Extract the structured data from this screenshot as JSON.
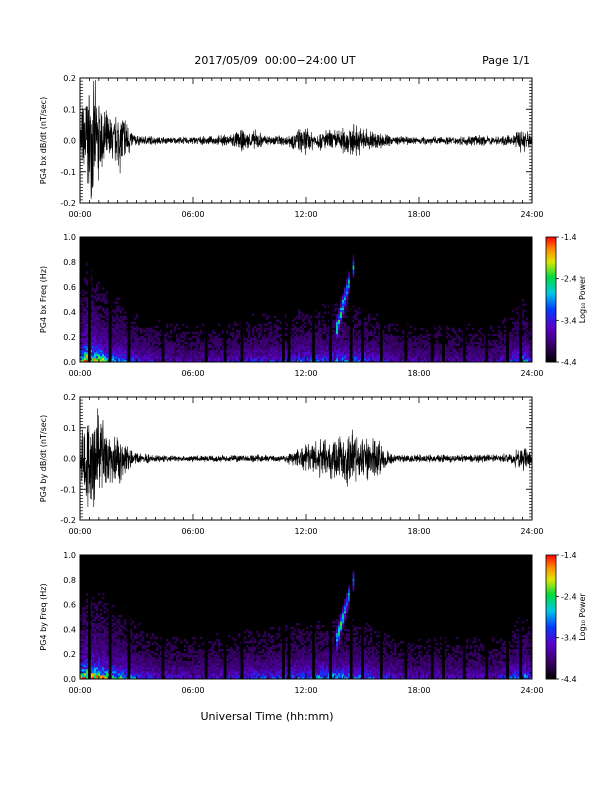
{
  "header": {
    "date_range": "2017/05/09  00:00−24:00 UT",
    "page": "Page 1/1"
  },
  "xlabel": "Universal Time (hh:mm)",
  "chart_data": [
    {
      "type": "line",
      "ylabel": "PG4 bx dB/dt (nT/sec)",
      "xlim": [
        0,
        24
      ],
      "ylim": [
        -0.2,
        0.2
      ],
      "x_ticks": [
        "00:00",
        "06:00",
        "12:00",
        "18:00",
        "24:00"
      ],
      "y_ticks": [
        "-0.2",
        "-0.1",
        "0.0",
        "0.1",
        "0.2"
      ],
      "envelope": {
        "hours": [
          0,
          0.3,
          0.6,
          0.9,
          1.2,
          1.5,
          1.8,
          2.1,
          2.4,
          2.7,
          3.0,
          3.3,
          3.6,
          4.0,
          5.0,
          6.0,
          7.0,
          8.0,
          8.5,
          9.0,
          9.4,
          9.8,
          10.5,
          11.0,
          11.5,
          12.0,
          12.5,
          13.0,
          13.5,
          14.0,
          14.5,
          15.0,
          15.5,
          16.0,
          16.5,
          17.0,
          18.0,
          19.0,
          20.0,
          21.0,
          22.0,
          23.0,
          23.4,
          23.7,
          24.0
        ],
        "amplitude": [
          0.08,
          0.2,
          0.2,
          0.2,
          0.12,
          0.1,
          0.08,
          0.12,
          0.1,
          0.04,
          0.02,
          0.015,
          0.02,
          0.015,
          0.012,
          0.015,
          0.015,
          0.025,
          0.04,
          0.03,
          0.04,
          0.02,
          0.02,
          0.02,
          0.04,
          0.05,
          0.03,
          0.04,
          0.04,
          0.05,
          0.06,
          0.05,
          0.04,
          0.03,
          0.02,
          0.015,
          0.015,
          0.015,
          0.015,
          0.02,
          0.015,
          0.02,
          0.05,
          0.04,
          0.03
        ]
      }
    },
    {
      "type": "heatmap",
      "ylabel": "PG4 bx Freq (Hz)",
      "xlim": [
        0,
        24
      ],
      "ylim": [
        0,
        1.0
      ],
      "x_ticks": [
        "00:00",
        "06:00",
        "12:00",
        "18:00",
        "24:00"
      ],
      "y_ticks": [
        "0.0",
        "0.2",
        "0.4",
        "0.6",
        "0.8",
        "1.0"
      ],
      "colorbar": {
        "label": "Log₁₀ Power",
        "ticks": [
          "-1.4",
          "-2.4",
          "-3.4",
          "-4.4"
        ],
        "range": [
          -4.4,
          -1.4
        ]
      },
      "data_gaps_hours": [
        0.5,
        1.6,
        2.6,
        4.4,
        6.7,
        7.7,
        8.6,
        10.8,
        11.1,
        12.4,
        13.3,
        14.4,
        15.0,
        16.0,
        17.3,
        18.7,
        19.3,
        20.4,
        21.6,
        22.7,
        23.4
      ],
      "signal": {
        "hours": [
          0,
          0.4,
          0.8,
          1.2,
          1.6,
          2.0,
          3.0,
          4.0,
          6.0,
          8.0,
          9.0,
          11.0,
          12.0,
          13.0,
          14.0,
          15.0,
          16.0,
          17.0,
          20.0,
          22.0,
          23.0,
          23.6,
          24.0
        ],
        "strength": [
          0.6,
          1.0,
          0.8,
          0.7,
          0.5,
          0.5,
          0.3,
          0.2,
          0.15,
          0.2,
          0.25,
          0.3,
          0.35,
          0.35,
          0.4,
          0.35,
          0.25,
          0.15,
          0.15,
          0.15,
          0.3,
          0.45,
          0.2
        ]
      },
      "rising_tone": {
        "start_hour": 13.6,
        "end_hour": 14.6,
        "start_freq": 0.25,
        "end_freq": 0.82
      }
    },
    {
      "type": "line",
      "ylabel": "PG4 by dB/dt (nT/sec)",
      "xlim": [
        0,
        24
      ],
      "ylim": [
        -0.2,
        0.2
      ],
      "x_ticks": [
        "00:00",
        "06:00",
        "12:00",
        "18:00",
        "24:00"
      ],
      "y_ticks": [
        "-0.2",
        "-0.1",
        "0.0",
        "0.1",
        "0.2"
      ],
      "envelope": {
        "hours": [
          0,
          0.3,
          0.6,
          0.9,
          1.2,
          1.5,
          1.8,
          2.1,
          2.4,
          2.7,
          3.0,
          3.3,
          3.6,
          4.0,
          5.0,
          6.0,
          7.0,
          8.0,
          8.5,
          9.0,
          9.4,
          9.8,
          10.5,
          11.0,
          11.5,
          12.0,
          12.5,
          13.0,
          13.5,
          14.0,
          14.5,
          15.0,
          15.5,
          16.0,
          16.5,
          17.0,
          18.0,
          19.0,
          20.0,
          21.0,
          22.0,
          23.0,
          23.4,
          23.7,
          24.0
        ],
        "amplitude": [
          0.06,
          0.2,
          0.2,
          0.2,
          0.15,
          0.12,
          0.08,
          0.1,
          0.06,
          0.03,
          0.02,
          0.015,
          0.02,
          0.015,
          0.01,
          0.012,
          0.012,
          0.012,
          0.015,
          0.012,
          0.015,
          0.012,
          0.012,
          0.02,
          0.04,
          0.05,
          0.06,
          0.08,
          0.07,
          0.1,
          0.12,
          0.08,
          0.1,
          0.05,
          0.02,
          0.015,
          0.015,
          0.015,
          0.015,
          0.015,
          0.015,
          0.02,
          0.06,
          0.04,
          0.025
        ]
      }
    },
    {
      "type": "heatmap",
      "ylabel": "PG4 by Freq (Hz)",
      "xlim": [
        0,
        24
      ],
      "ylim": [
        0,
        1.0
      ],
      "x_ticks": [
        "00:00",
        "06:00",
        "12:00",
        "18:00",
        "24:00"
      ],
      "y_ticks": [
        "0.0",
        "0.2",
        "0.4",
        "0.6",
        "0.8",
        "1.0"
      ],
      "colorbar": {
        "label": "Log₁₀ Power",
        "ticks": [
          "-1.4",
          "-2.4",
          "-3.4",
          "-4.4"
        ],
        "range": [
          -4.4,
          -1.4
        ]
      },
      "data_gaps_hours": [
        0.5,
        1.6,
        2.6,
        4.4,
        6.7,
        7.7,
        8.6,
        10.8,
        11.1,
        12.4,
        13.3,
        14.4,
        15.0,
        16.0,
        17.3,
        18.7,
        19.3,
        20.4,
        21.6,
        22.7,
        23.4
      ],
      "signal": {
        "hours": [
          0,
          0.4,
          0.8,
          1.2,
          1.6,
          2.0,
          3.0,
          4.0,
          6.0,
          8.0,
          9.0,
          11.0,
          12.0,
          13.0,
          14.0,
          15.0,
          16.0,
          17.0,
          20.0,
          22.0,
          23.0,
          23.6,
          24.0
        ],
        "strength": [
          0.7,
          1.0,
          0.85,
          0.8,
          0.6,
          0.55,
          0.35,
          0.25,
          0.2,
          0.25,
          0.3,
          0.35,
          0.4,
          0.45,
          0.45,
          0.4,
          0.3,
          0.2,
          0.2,
          0.2,
          0.35,
          0.5,
          0.25
        ]
      },
      "rising_tone": {
        "start_hour": 13.6,
        "end_hour": 14.6,
        "start_freq": 0.3,
        "end_freq": 0.85
      }
    }
  ]
}
